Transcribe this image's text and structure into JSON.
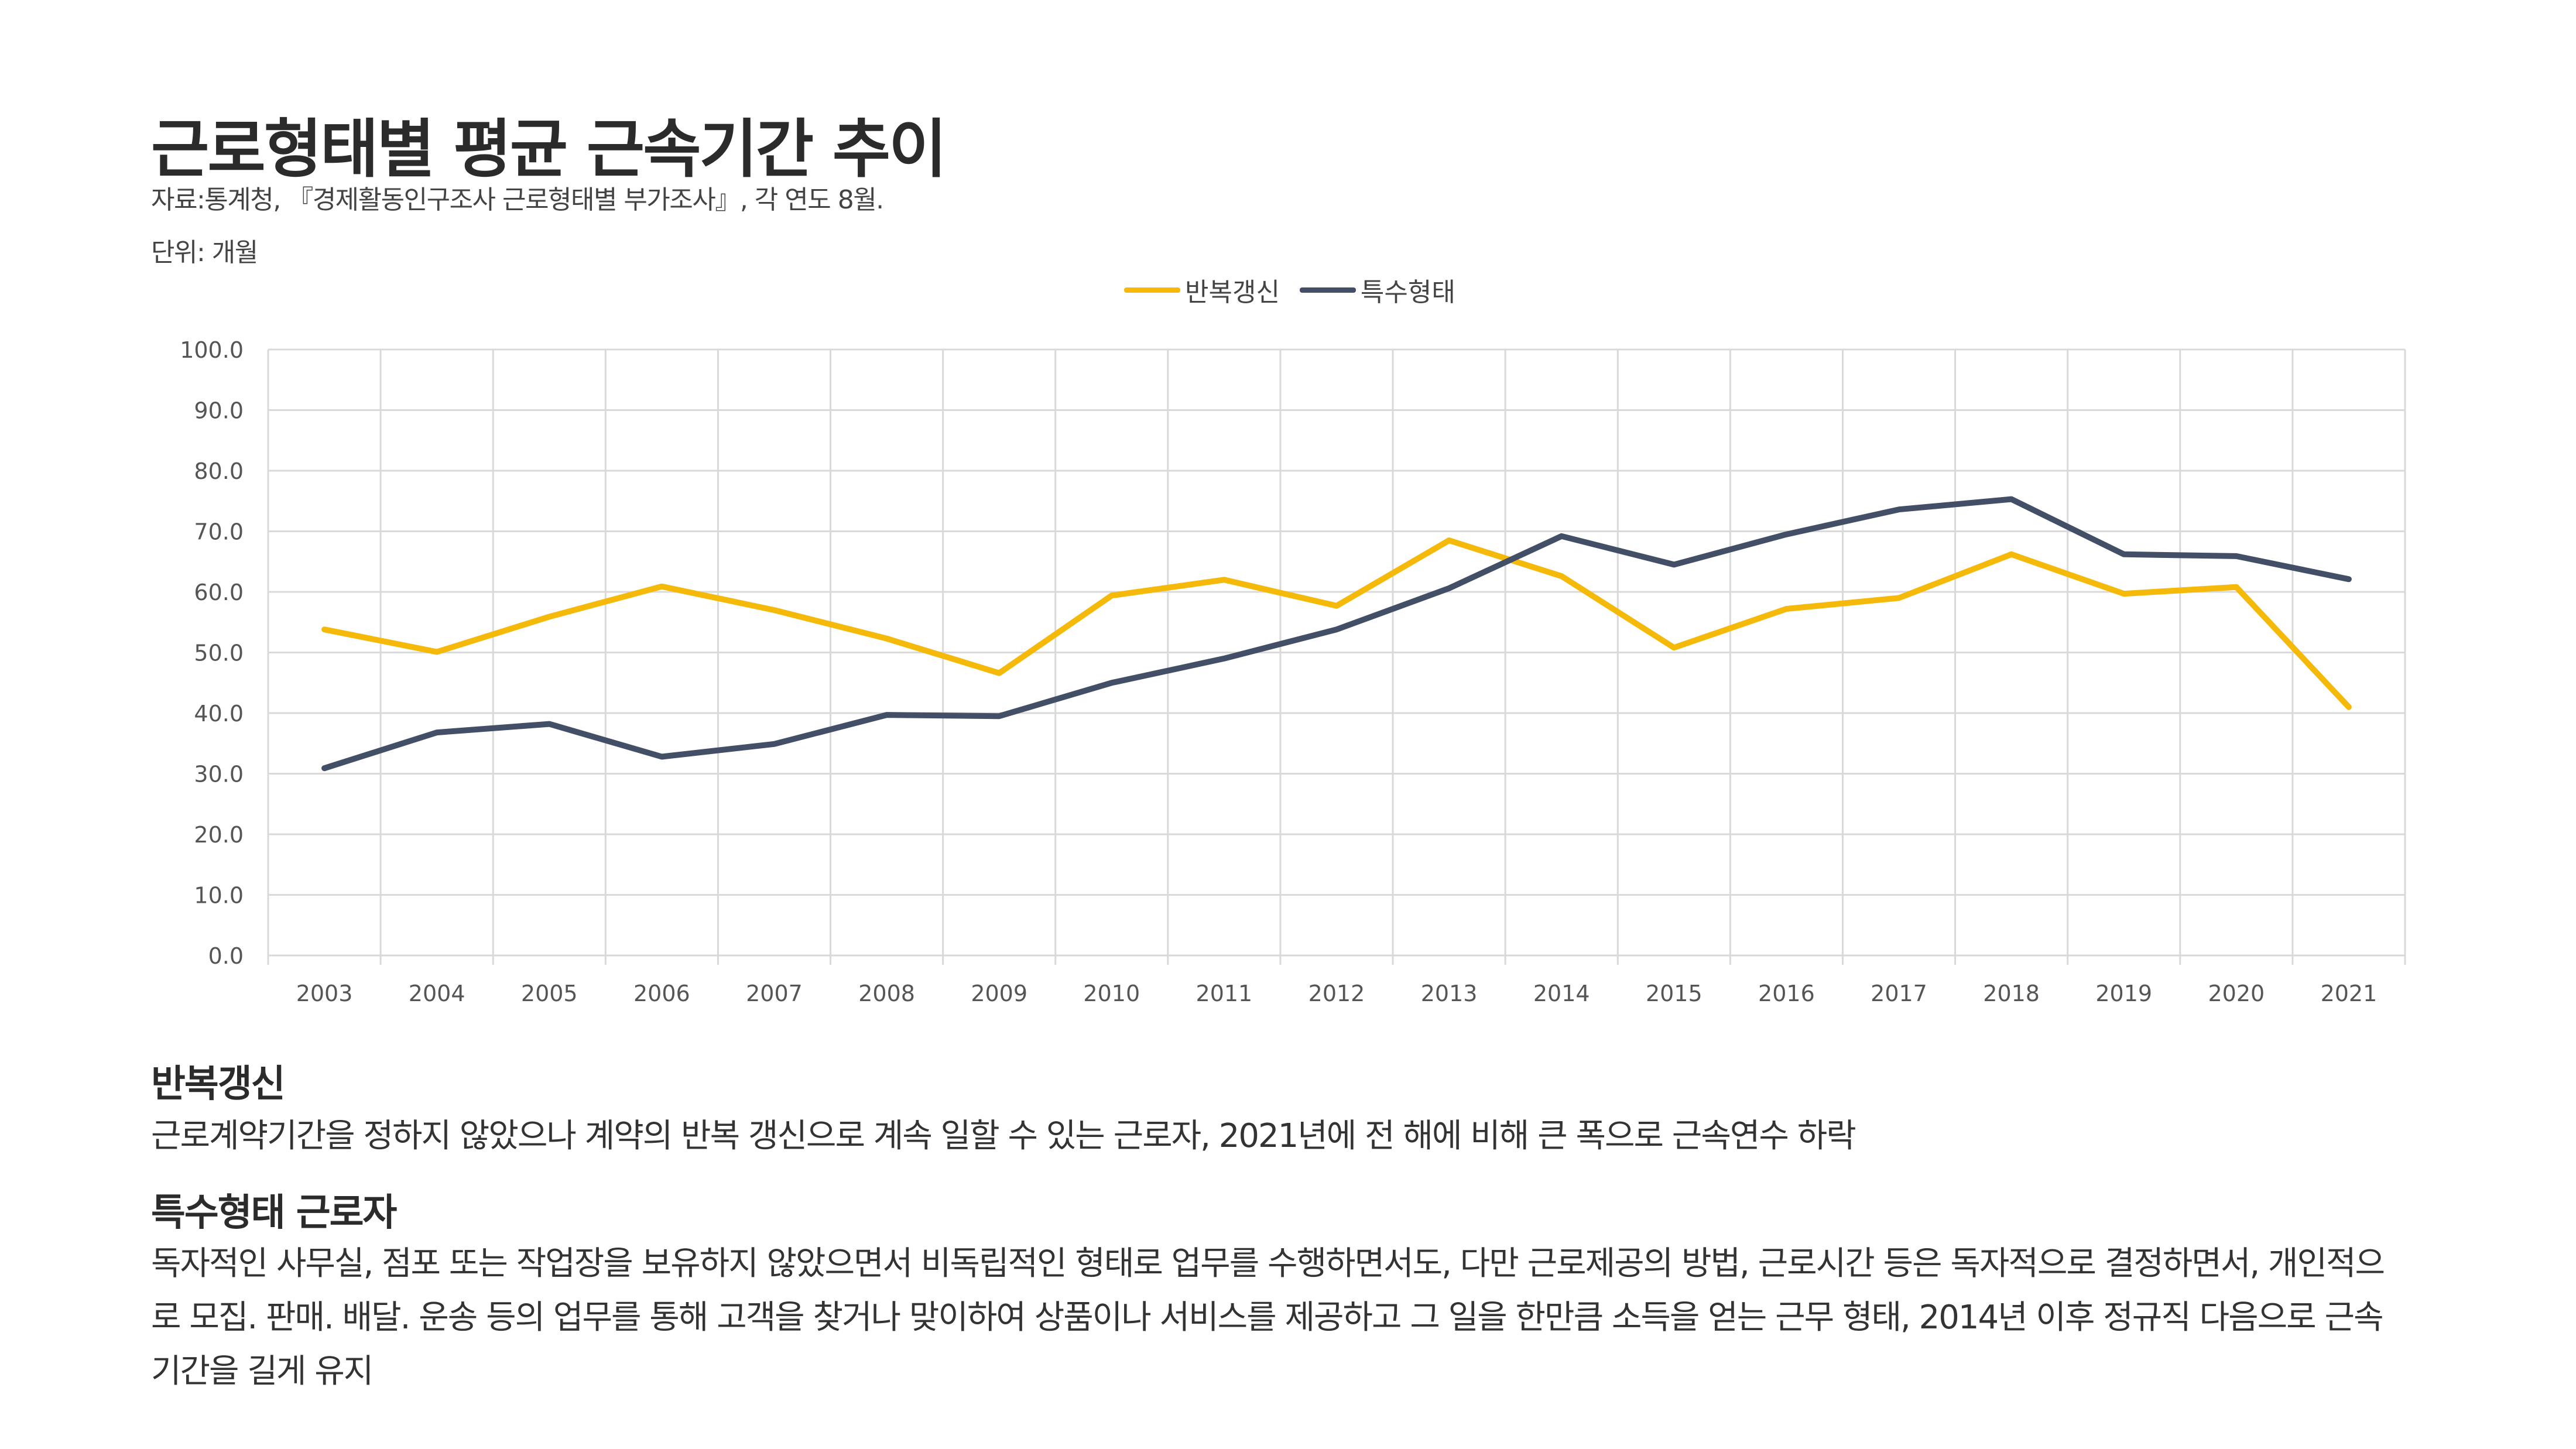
{
  "header": {
    "title": "근로형태별 평균 근속기간 추이",
    "source": "자료:통계청, 『경제활동인구조사 근로형태별 부가조사』, 각 연도 8월.",
    "unit": "단위: 개월"
  },
  "chart_data": {
    "type": "line",
    "title": "근로형태별 평균 근속기간 추이",
    "xlabel": "",
    "ylabel": "개월",
    "ylim": [
      0,
      100
    ],
    "ytick_labels": [
      "0.0",
      "10.0",
      "20.0",
      "30.0",
      "40.0",
      "50.0",
      "60.0",
      "70.0",
      "80.0",
      "90.0",
      "100.0"
    ],
    "grid": true,
    "legend_position": "top-center",
    "categories": [
      "2003",
      "2004",
      "2005",
      "2006",
      "2007",
      "2008",
      "2009",
      "2010",
      "2011",
      "2012",
      "2013",
      "2014",
      "2015",
      "2016",
      "2017",
      "2018",
      "2019",
      "2020",
      "2021"
    ],
    "series": [
      {
        "name": "반복갱신",
        "color": "#F5B90A",
        "values": [
          53.8,
          50.1,
          55.9,
          60.9,
          57.0,
          52.3,
          46.6,
          59.4,
          62.0,
          57.7,
          68.5,
          62.6,
          50.8,
          57.2,
          59.0,
          66.2,
          59.7,
          60.8,
          41.0
        ]
      },
      {
        "name": "특수형태",
        "color": "#434F66",
        "values": [
          30.9,
          36.8,
          38.2,
          32.8,
          34.9,
          39.7,
          39.5,
          45.0,
          49.0,
          53.8,
          60.6,
          69.2,
          64.5,
          69.5,
          73.6,
          75.3,
          66.2,
          65.9,
          62.1
        ]
      }
    ]
  },
  "sections": [
    {
      "heading": "반복갱신",
      "body": "근로계약기간을 정하지 않았으나 계약의 반복 갱신으로 계속 일할 수 있는 근로자, 2021년에 전 해에 비해 큰 폭으로 근속연수 하락"
    },
    {
      "heading": "특수형태 근로자",
      "body": "독자적인 사무실, 점포 또는 작업장을 보유하지 않았으면서 비독립적인 형태로 업무를 수행하면서도, 다만 근로제공의 방법, 근로시간 등은 독자적으로 결정하면서, 개인적으로 모집. 판매. 배달. 운송 등의 업무를 통해 고객을 찾거나 맞이하여 상품이나 서비스를 제공하고 그 일을 한만큼 소득을 얻는 근무 형태, 2014년 이후 정규직 다음으로 근속기간을 길게 유지"
    }
  ]
}
